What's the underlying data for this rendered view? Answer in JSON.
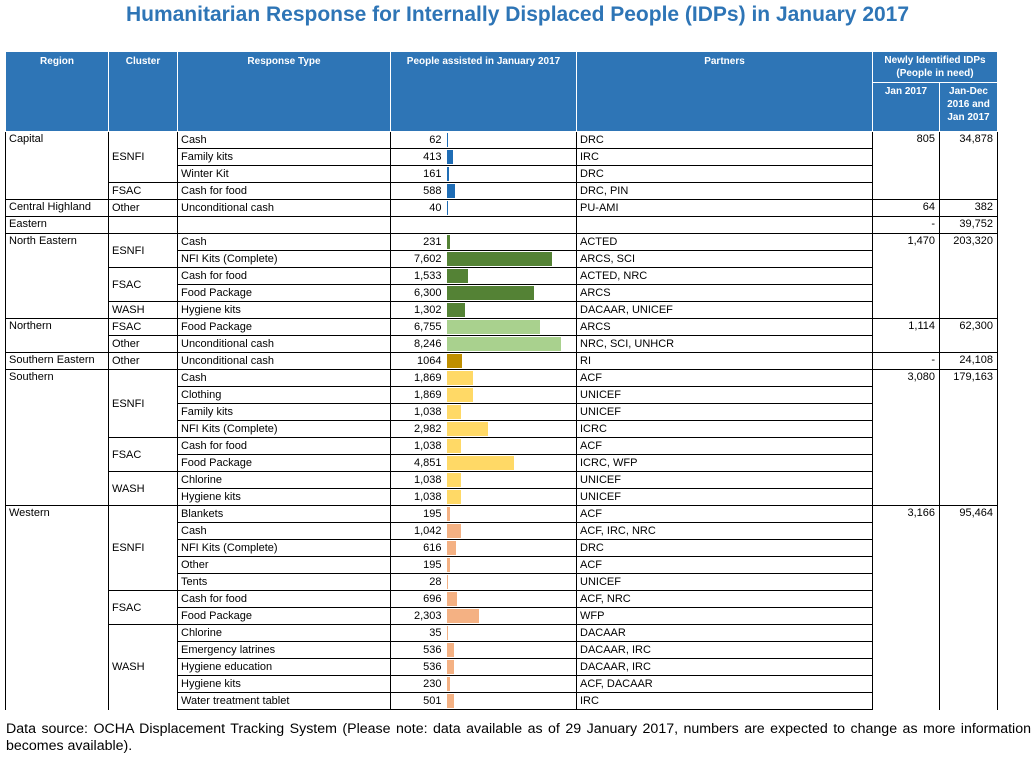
{
  "title": "Humanitarian Response for Internally Displaced People (IDPs) in January 2017",
  "headers": {
    "region": "Region",
    "cluster": "Cluster",
    "response_type": "Response Type",
    "people_assisted": "People assisted in January 2017",
    "partners": "Partners",
    "newly_identified": "Newly Identified IDPs (People in need)",
    "jan2017": "Jan 2017",
    "jan_dec": "Jan-Dec 2016 and Jan 2017"
  },
  "colors": {
    "header_bg": "#2e75b6",
    "title": "#2e75b6",
    "Capital": "#1f6db5",
    "Central Highland": "#1f6db5",
    "Eastern": "#1f6db5",
    "North Eastern": "#548235",
    "Northern": "#a9d18e",
    "Southern Eastern": "#bf8f00",
    "Southern": "#ffd966",
    "Western": "#f4b183"
  },
  "bar_max": 8246,
  "regions": [
    {
      "name": "Capital",
      "jan2017": "805",
      "jan_dec": "34,878",
      "clusters": [
        {
          "name": "ESNFI",
          "rows": [
            {
              "type": "Cash",
              "people": "62",
              "value": 62,
              "partners": "DRC"
            },
            {
              "type": "Family kits",
              "people": "413",
              "value": 413,
              "partners": "IRC"
            },
            {
              "type": "Winter Kit",
              "people": "161",
              "value": 161,
              "partners": "DRC"
            }
          ]
        },
        {
          "name": "FSAC",
          "rows": [
            {
              "type": "Cash for food",
              "people": "588",
              "value": 588,
              "partners": "DRC, PIN"
            }
          ]
        }
      ]
    },
    {
      "name": "Central Highland",
      "jan2017": "64",
      "jan_dec": "382",
      "clusters": [
        {
          "name": "Other",
          "rows": [
            {
              "type": "Unconditional cash",
              "people": "40",
              "value": 40,
              "partners": "PU-AMI"
            }
          ]
        }
      ]
    },
    {
      "name": "Eastern",
      "jan2017": "-",
      "jan_dec": "39,752",
      "clusters": [
        {
          "name": "",
          "rows": [
            {
              "type": "",
              "people": "",
              "value": 0,
              "partners": ""
            }
          ]
        }
      ]
    },
    {
      "name": "North Eastern",
      "jan2017": "1,470",
      "jan_dec": "203,320",
      "clusters": [
        {
          "name": "ESNFI",
          "rows": [
            {
              "type": "Cash",
              "people": "231",
              "value": 231,
              "partners": "ACTED"
            },
            {
              "type": "NFI Kits (Complete)",
              "people": "7,602",
              "value": 7602,
              "partners": "ARCS, SCI"
            }
          ]
        },
        {
          "name": "FSAC",
          "rows": [
            {
              "type": "Cash for food",
              "people": "1,533",
              "value": 1533,
              "partners": "ACTED, NRC"
            },
            {
              "type": "Food Package",
              "people": "6,300",
              "value": 6300,
              "partners": "ARCS"
            }
          ]
        },
        {
          "name": "WASH",
          "rows": [
            {
              "type": "Hygiene kits",
              "people": "1,302",
              "value": 1302,
              "partners": "DACAAR, UNICEF"
            }
          ]
        }
      ]
    },
    {
      "name": "Northern",
      "jan2017": "1,114",
      "jan_dec": "62,300",
      "clusters": [
        {
          "name": "FSAC",
          "rows": [
            {
              "type": "Food Package",
              "people": "6,755",
              "value": 6755,
              "partners": "ARCS"
            }
          ]
        },
        {
          "name": "Other",
          "rows": [
            {
              "type": "Unconditional cash",
              "people": "8,246",
              "value": 8246,
              "partners": "NRC, SCI, UNHCR"
            }
          ]
        }
      ]
    },
    {
      "name": "Southern Eastern",
      "jan2017": "-",
      "jan_dec": "24,108",
      "clusters": [
        {
          "name": "Other",
          "rows": [
            {
              "type": "Unconditional cash",
              "people": "1064",
              "value": 1064,
              "partners": "RI"
            }
          ]
        }
      ]
    },
    {
      "name": "Southern",
      "jan2017": "3,080",
      "jan_dec": "179,163",
      "clusters": [
        {
          "name": "ESNFI",
          "rows": [
            {
              "type": "Cash",
              "people": "1,869",
              "value": 1869,
              "partners": "ACF"
            },
            {
              "type": "Clothing",
              "people": "1,869",
              "value": 1869,
              "partners": "UNICEF"
            },
            {
              "type": "Family kits",
              "people": "1,038",
              "value": 1038,
              "partners": "UNICEF"
            },
            {
              "type": "NFI Kits (Complete)",
              "people": "2,982",
              "value": 2982,
              "partners": "ICRC"
            }
          ]
        },
        {
          "name": "FSAC",
          "rows": [
            {
              "type": "Cash for food",
              "people": "1,038",
              "value": 1038,
              "partners": "ACF"
            },
            {
              "type": "Food Package",
              "people": "4,851",
              "value": 4851,
              "partners": "ICRC, WFP"
            }
          ]
        },
        {
          "name": "WASH",
          "rows": [
            {
              "type": "Chlorine",
              "people": "1,038",
              "value": 1038,
              "partners": "UNICEF"
            },
            {
              "type": "Hygiene kits",
              "people": "1,038",
              "value": 1038,
              "partners": "UNICEF"
            }
          ]
        }
      ]
    },
    {
      "name": "Western",
      "jan2017": "3,166",
      "jan_dec": "95,464",
      "clusters": [
        {
          "name": "ESNFI",
          "rows": [
            {
              "type": "Blankets",
              "people": "195",
              "value": 195,
              "partners": "ACF"
            },
            {
              "type": "Cash",
              "people": "1,042",
              "value": 1042,
              "partners": "ACF, IRC, NRC"
            },
            {
              "type": "NFI Kits (Complete)",
              "people": "616",
              "value": 616,
              "partners": "DRC"
            },
            {
              "type": "Other",
              "people": "195",
              "value": 195,
              "partners": "ACF"
            },
            {
              "type": "Tents",
              "people": "28",
              "value": 28,
              "partners": "UNICEF"
            }
          ]
        },
        {
          "name": "FSAC",
          "rows": [
            {
              "type": "Cash for food",
              "people": "696",
              "value": 696,
              "partners": "ACF, NRC"
            },
            {
              "type": "Food Package",
              "people": "2,303",
              "value": 2303,
              "partners": "WFP"
            }
          ]
        },
        {
          "name": "WASH",
          "rows": [
            {
              "type": "Chlorine",
              "people": "35",
              "value": 35,
              "partners": "DACAAR"
            },
            {
              "type": "Emergency latrines",
              "people": "536",
              "value": 536,
              "partners": "DACAAR, IRC"
            },
            {
              "type": "Hygiene education",
              "people": "536",
              "value": 536,
              "partners": "DACAAR, IRC"
            },
            {
              "type": "Hygiene kits",
              "people": "230",
              "value": 230,
              "partners": "ACF, DACAAR"
            },
            {
              "type": "Water treatment tablet",
              "people": "501",
              "value": 501,
              "partners": "IRC"
            }
          ]
        }
      ]
    }
  ],
  "footer": "Data source: OCHA Displacement Tracking System (Please note: data available as of 29 January 2017, numbers are expected to change as more information becomes available)."
}
